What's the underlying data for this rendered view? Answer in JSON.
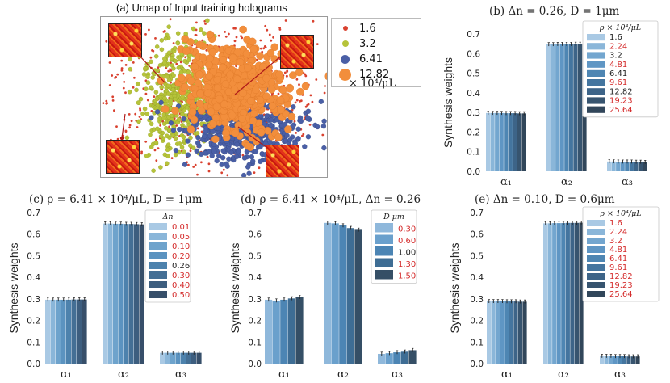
{
  "umap": {
    "title": "(a) Umap of Input training holograms",
    "legend": [
      {
        "label": "1.6",
        "color": "#d9412f"
      },
      {
        "label": "3.2",
        "color": "#b6c33a"
      },
      {
        "label": "6.41",
        "color": "#4a5fa6"
      },
      {
        "label": "12.82",
        "color": "#f28e3c"
      }
    ],
    "unit": "× 10⁴/μL"
  },
  "colors": {
    "c8": [
      "#a9c9e4",
      "#8ab6d9",
      "#6ea3cc",
      "#5b93c0",
      "#4d82ad",
      "#446f95",
      "#3d5e7f",
      "#374f6a"
    ],
    "c9": [
      "#a9c9e4",
      "#8ab6d9",
      "#73a6cf",
      "#5f96c4",
      "#4e86b3",
      "#44759f",
      "#3d6488",
      "#37546f",
      "#31465a"
    ],
    "c5": [
      "#8fb8db",
      "#6aa0cc",
      "#4c85b4",
      "#3e6d94",
      "#354f66"
    ],
    "red": "#d42a2a",
    "ink": "#222222"
  },
  "chart_data": [
    {
      "id": "b",
      "type": "bar",
      "title": "(b) Δn = 0.26, D = 1μm",
      "ylabel": "Synthesis weights",
      "categories": [
        "α₁",
        "α₂",
        "α₃"
      ],
      "ylim": [
        0,
        0.7
      ],
      "yticks": [
        "0.0",
        "0.1",
        "0.2",
        "0.3",
        "0.4",
        "0.5",
        "0.6",
        "0.7"
      ],
      "legend_title": "ρ × 10⁴/μL",
      "legend_red": [
        false,
        true,
        false,
        true,
        false,
        true,
        false,
        true,
        true
      ],
      "series": [
        {
          "name": "1.6",
          "values": [
            0.297,
            0.647,
            0.05
          ]
        },
        {
          "name": "2.24",
          "values": [
            0.297,
            0.647,
            0.05
          ]
        },
        {
          "name": "3.2",
          "values": [
            0.297,
            0.648,
            0.049
          ]
        },
        {
          "name": "4.81",
          "values": [
            0.297,
            0.648,
            0.049
          ]
        },
        {
          "name": "6.41",
          "values": [
            0.296,
            0.648,
            0.049
          ]
        },
        {
          "name": "9.61",
          "values": [
            0.296,
            0.648,
            0.049
          ]
        },
        {
          "name": "12.82",
          "values": [
            0.296,
            0.649,
            0.048
          ]
        },
        {
          "name": "19.23",
          "values": [
            0.295,
            0.649,
            0.048
          ]
        },
        {
          "name": "25.64",
          "values": [
            0.295,
            0.65,
            0.047
          ]
        }
      ]
    },
    {
      "id": "c",
      "type": "bar",
      "title": "(c) ρ = 6.41 × 10⁴/μL, D = 1μm",
      "ylabel": "Synthesis weights",
      "categories": [
        "α₁",
        "α₂",
        "α₃"
      ],
      "ylim": [
        0,
        0.7
      ],
      "yticks": [
        "0.0",
        "0.1",
        "0.2",
        "0.3",
        "0.4",
        "0.5",
        "0.6",
        "0.7"
      ],
      "legend_title": "Δn",
      "legend_red": [
        true,
        true,
        true,
        true,
        false,
        true,
        true,
        true
      ],
      "series": [
        {
          "name": "0.01",
          "values": [
            0.296,
            0.649,
            0.05
          ]
        },
        {
          "name": "0.05",
          "values": [
            0.296,
            0.649,
            0.05
          ]
        },
        {
          "name": "0.10",
          "values": [
            0.296,
            0.648,
            0.05
          ]
        },
        {
          "name": "0.20",
          "values": [
            0.296,
            0.648,
            0.05
          ]
        },
        {
          "name": "0.26",
          "values": [
            0.296,
            0.647,
            0.05
          ]
        },
        {
          "name": "0.30",
          "values": [
            0.297,
            0.647,
            0.05
          ]
        },
        {
          "name": "0.40",
          "values": [
            0.297,
            0.646,
            0.05
          ]
        },
        {
          "name": "0.50",
          "values": [
            0.297,
            0.645,
            0.05
          ]
        }
      ]
    },
    {
      "id": "d",
      "type": "bar",
      "title": "(d) ρ = 6.41 × 10⁴/μL, Δn = 0.26",
      "ylabel": "Synthesis weights",
      "categories": [
        "α₁",
        "α₂",
        "α₃"
      ],
      "ylim": [
        0,
        0.7
      ],
      "yticks": [
        "0.0",
        "0.1",
        "0.2",
        "0.3",
        "0.4",
        "0.5",
        "0.6",
        "0.7"
      ],
      "legend_title": "D μm",
      "legend_red": [
        true,
        true,
        false,
        true,
        true
      ],
      "series": [
        {
          "name": "0.30",
          "values": [
            0.296,
            0.652,
            0.045
          ]
        },
        {
          "name": "0.60",
          "values": [
            0.292,
            0.65,
            0.048
          ]
        },
        {
          "name": "1.00",
          "values": [
            0.296,
            0.64,
            0.052
          ]
        },
        {
          "name": "1.30",
          "values": [
            0.302,
            0.628,
            0.055
          ]
        },
        {
          "name": "1.50",
          "values": [
            0.308,
            0.62,
            0.062
          ]
        }
      ]
    },
    {
      "id": "e",
      "type": "bar",
      "title": "(e) Δn = 0.10, D = 0.6μm",
      "ylabel": "Synthesis weights",
      "categories": [
        "α₁",
        "α₂",
        "α₃"
      ],
      "ylim": [
        0,
        0.7
      ],
      "yticks": [
        "0.0",
        "0.1",
        "0.2",
        "0.3",
        "0.4",
        "0.5",
        "0.6",
        "0.7"
      ],
      "legend_title": "ρ × 10⁴/μL",
      "legend_red": [
        true,
        true,
        true,
        true,
        true,
        true,
        true,
        true,
        true
      ],
      "series": [
        {
          "name": "1.6",
          "values": [
            0.289,
            0.65,
            0.035
          ]
        },
        {
          "name": "2.24",
          "values": [
            0.289,
            0.65,
            0.035
          ]
        },
        {
          "name": "3.2",
          "values": [
            0.289,
            0.651,
            0.035
          ]
        },
        {
          "name": "4.81",
          "values": [
            0.289,
            0.651,
            0.034
          ]
        },
        {
          "name": "6.41",
          "values": [
            0.288,
            0.651,
            0.034
          ]
        },
        {
          "name": "9.61",
          "values": [
            0.288,
            0.652,
            0.034
          ]
        },
        {
          "name": "12.82",
          "values": [
            0.288,
            0.652,
            0.033
          ]
        },
        {
          "name": "19.23",
          "values": [
            0.287,
            0.652,
            0.033
          ]
        },
        {
          "name": "25.64",
          "values": [
            0.287,
            0.653,
            0.033
          ]
        }
      ]
    }
  ]
}
